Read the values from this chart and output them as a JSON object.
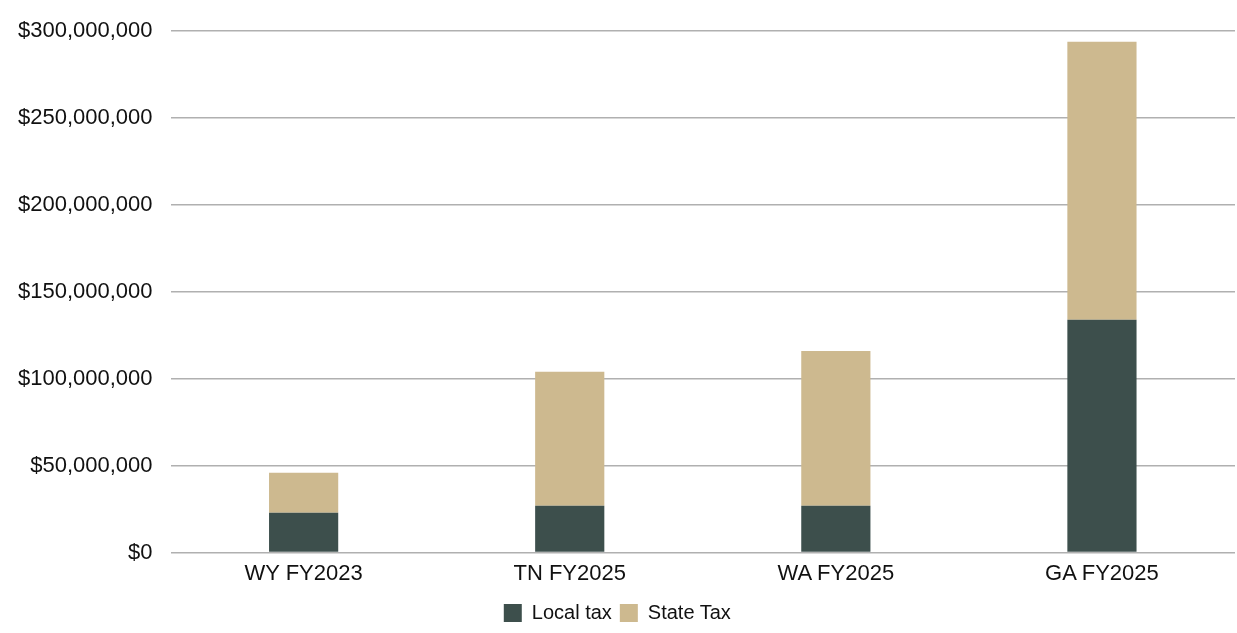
{
  "chart_data": {
    "type": "bar",
    "stacked": true,
    "categories": [
      "WY FY2023",
      "TN FY2025",
      "WA FY2025",
      "GA FY2025"
    ],
    "series": [
      {
        "name": "Local tax",
        "color": "#3d4f4c",
        "values": [
          23000000,
          27000000,
          27000000,
          134000000
        ]
      },
      {
        "name": "State Tax",
        "color": "#cdb98f",
        "values": [
          23000000,
          77000000,
          89000000,
          160000000
        ]
      }
    ],
    "ylim": [
      0,
      300000000
    ],
    "yticks": [
      {
        "value": 0,
        "label": "$0"
      },
      {
        "value": 50000000,
        "label": "$50,000,000"
      },
      {
        "value": 100000000,
        "label": "$100,000,000"
      },
      {
        "value": 150000000,
        "label": "$150,000,000"
      },
      {
        "value": 200000000,
        "label": "$200,000,000"
      },
      {
        "value": 250000000,
        "label": "$250,000,000"
      },
      {
        "value": 300000000,
        "label": "$300,000,000"
      }
    ],
    "grid": "y",
    "legend": "bottom"
  }
}
